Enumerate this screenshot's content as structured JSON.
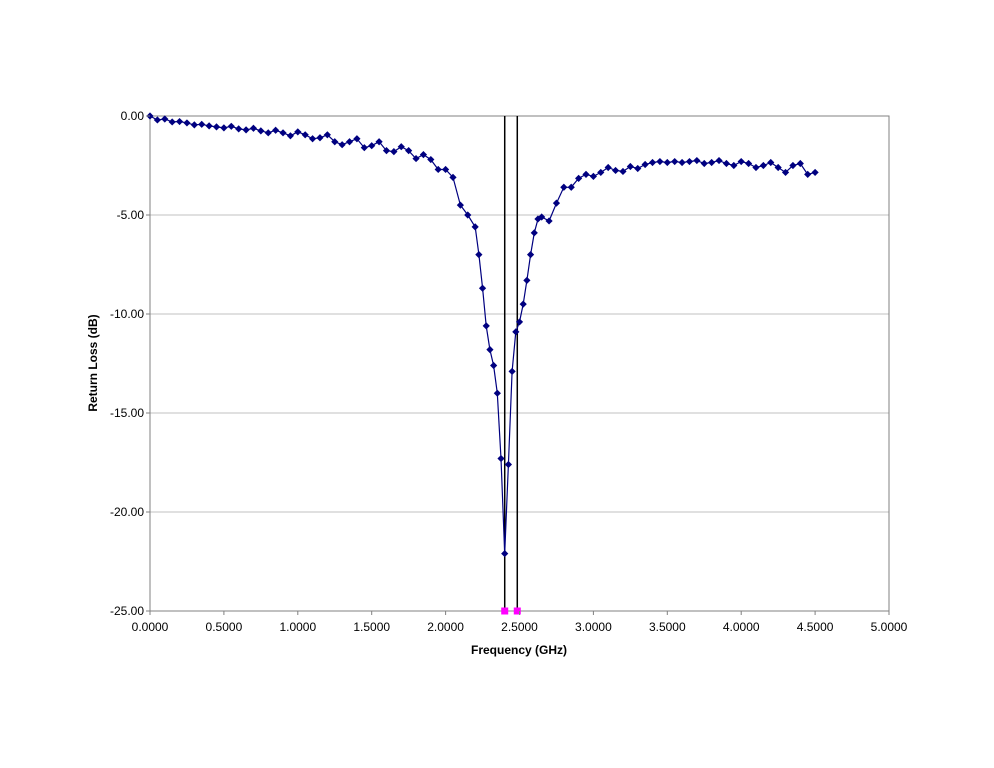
{
  "chart_data": {
    "type": "scatter",
    "xlabel": "Frequency (GHz)",
    "ylabel": "Return Loss (dB)",
    "xlim": [
      0,
      5
    ],
    "ylim": [
      -25,
      0
    ],
    "x_ticks": [
      "0.0000",
      "0.5000",
      "1.0000",
      "1.5000",
      "2.0000",
      "2.5000",
      "3.0000",
      "3.5000",
      "4.0000",
      "4.5000",
      "5.0000"
    ],
    "y_ticks": [
      "0.00",
      "-5.00",
      "-10.00",
      "-15.00",
      "-20.00",
      "-25.00"
    ],
    "grid": "horizontal",
    "legend": "none",
    "colors": {
      "series": "#000080",
      "marker_band": "#ff00ff",
      "band_lines": "#000000",
      "grid": "#c0c0c0",
      "axis": "#808080"
    },
    "band_edges_ghz": [
      2.4,
      2.485
    ],
    "series": [
      {
        "color": "#000080",
        "marker": "diamond",
        "points": [
          [
            0.0,
            0.0
          ],
          [
            0.05,
            -0.2
          ],
          [
            0.1,
            -0.15
          ],
          [
            0.15,
            -0.3
          ],
          [
            0.2,
            -0.28
          ],
          [
            0.25,
            -0.35
          ],
          [
            0.3,
            -0.45
          ],
          [
            0.35,
            -0.42
          ],
          [
            0.4,
            -0.5
          ],
          [
            0.45,
            -0.55
          ],
          [
            0.5,
            -0.6
          ],
          [
            0.55,
            -0.52
          ],
          [
            0.6,
            -0.65
          ],
          [
            0.65,
            -0.7
          ],
          [
            0.7,
            -0.62
          ],
          [
            0.75,
            -0.75
          ],
          [
            0.8,
            -0.85
          ],
          [
            0.85,
            -0.72
          ],
          [
            0.9,
            -0.85
          ],
          [
            0.95,
            -1.0
          ],
          [
            1.0,
            -0.8
          ],
          [
            1.05,
            -0.95
          ],
          [
            1.1,
            -1.15
          ],
          [
            1.15,
            -1.1
          ],
          [
            1.2,
            -0.95
          ],
          [
            1.25,
            -1.3
          ],
          [
            1.3,
            -1.45
          ],
          [
            1.35,
            -1.3
          ],
          [
            1.4,
            -1.15
          ],
          [
            1.45,
            -1.6
          ],
          [
            1.5,
            -1.5
          ],
          [
            1.55,
            -1.3
          ],
          [
            1.6,
            -1.75
          ],
          [
            1.65,
            -1.8
          ],
          [
            1.7,
            -1.55
          ],
          [
            1.75,
            -1.75
          ],
          [
            1.8,
            -2.15
          ],
          [
            1.85,
            -1.95
          ],
          [
            1.9,
            -2.2
          ],
          [
            1.95,
            -2.7
          ],
          [
            2.0,
            -2.7
          ],
          [
            2.05,
            -3.1
          ],
          [
            2.1,
            -4.5
          ],
          [
            2.15,
            -5.0
          ],
          [
            2.2,
            -5.6
          ],
          [
            2.225,
            -7.0
          ],
          [
            2.25,
            -8.7
          ],
          [
            2.275,
            -10.6
          ],
          [
            2.3,
            -11.8
          ],
          [
            2.325,
            -12.6
          ],
          [
            2.35,
            -14.0
          ],
          [
            2.375,
            -17.3
          ],
          [
            2.4,
            -22.1
          ],
          [
            2.425,
            -17.6
          ],
          [
            2.45,
            -12.9
          ],
          [
            2.475,
            -10.9
          ],
          [
            2.5,
            -10.4
          ],
          [
            2.525,
            -9.5
          ],
          [
            2.55,
            -8.3
          ],
          [
            2.575,
            -7.0
          ],
          [
            2.6,
            -5.9
          ],
          [
            2.625,
            -5.2
          ],
          [
            2.65,
            -5.1
          ],
          [
            2.7,
            -5.3
          ],
          [
            2.75,
            -4.4
          ],
          [
            2.8,
            -3.6
          ],
          [
            2.85,
            -3.6
          ],
          [
            2.9,
            -3.15
          ],
          [
            2.95,
            -2.95
          ],
          [
            3.0,
            -3.05
          ],
          [
            3.05,
            -2.85
          ],
          [
            3.1,
            -2.6
          ],
          [
            3.15,
            -2.75
          ],
          [
            3.2,
            -2.8
          ],
          [
            3.25,
            -2.55
          ],
          [
            3.3,
            -2.65
          ],
          [
            3.35,
            -2.45
          ],
          [
            3.4,
            -2.35
          ],
          [
            3.45,
            -2.3
          ],
          [
            3.5,
            -2.35
          ],
          [
            3.55,
            -2.3
          ],
          [
            3.6,
            -2.35
          ],
          [
            3.65,
            -2.3
          ],
          [
            3.7,
            -2.25
          ],
          [
            3.75,
            -2.4
          ],
          [
            3.8,
            -2.35
          ],
          [
            3.85,
            -2.25
          ],
          [
            3.9,
            -2.4
          ],
          [
            3.95,
            -2.5
          ],
          [
            4.0,
            -2.3
          ],
          [
            4.05,
            -2.4
          ],
          [
            4.1,
            -2.6
          ],
          [
            4.15,
            -2.5
          ],
          [
            4.2,
            -2.35
          ],
          [
            4.25,
            -2.6
          ],
          [
            4.3,
            -2.85
          ],
          [
            4.35,
            -2.5
          ],
          [
            4.4,
            -2.4
          ],
          [
            4.45,
            -2.95
          ],
          [
            4.5,
            -2.85
          ]
        ]
      }
    ]
  }
}
